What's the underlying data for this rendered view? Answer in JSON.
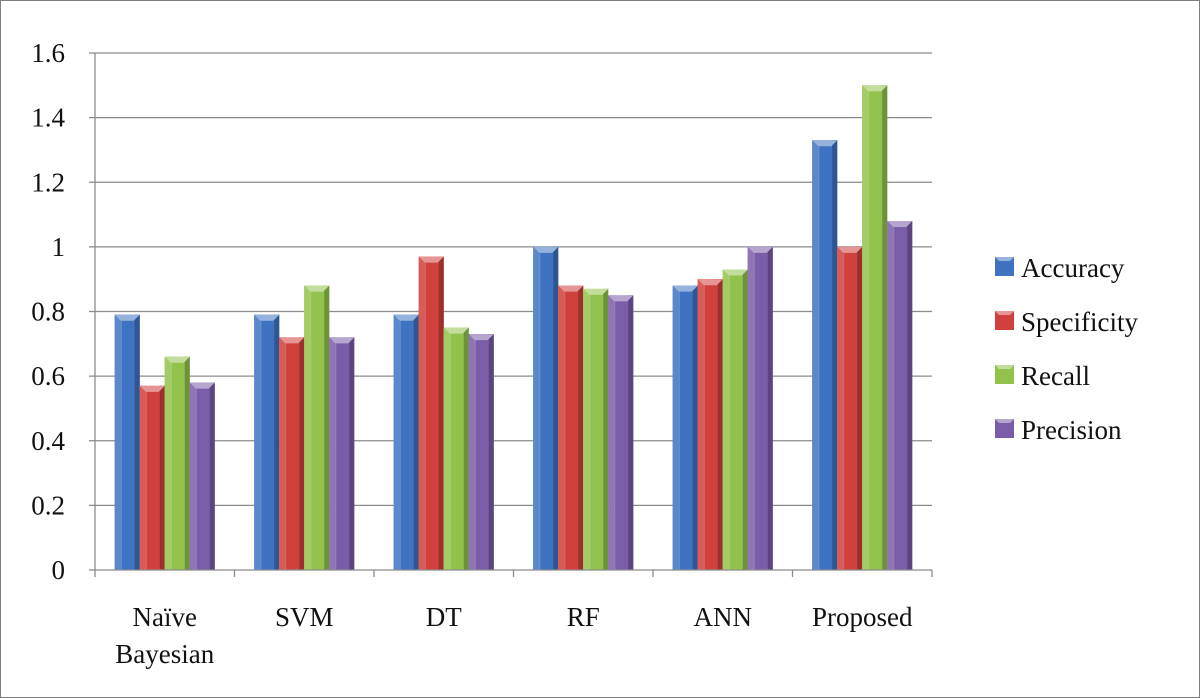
{
  "chart_data": {
    "type": "bar",
    "title": "",
    "xlabel": "",
    "ylabel": "",
    "ylim": [
      0,
      1.6
    ],
    "yticks": [
      "0",
      "0.2",
      "0.4",
      "0.6",
      "0.8",
      "1",
      "1.2",
      "1.4",
      "1.6"
    ],
    "grid": true,
    "legend_position": "right",
    "categories": [
      [
        "Naïve",
        "Bayesian"
      ],
      [
        "SVM"
      ],
      [
        "DT"
      ],
      [
        "RF"
      ],
      [
        "ANN"
      ],
      [
        "Proposed"
      ]
    ],
    "series": [
      {
        "name": "Accuracy",
        "color": "#3f73c1",
        "values": [
          0.79,
          0.79,
          0.79,
          1.0,
          0.88,
          1.33
        ]
      },
      {
        "name": "Specificity",
        "color": "#d0403c",
        "values": [
          0.57,
          0.72,
          0.97,
          0.88,
          0.9,
          1.0
        ]
      },
      {
        "name": "Recall",
        "color": "#92c24c",
        "values": [
          0.66,
          0.88,
          0.75,
          0.87,
          0.93,
          1.5
        ]
      },
      {
        "name": "Precision",
        "color": "#7b5ca8",
        "values": [
          0.58,
          0.72,
          0.73,
          0.85,
          1.0,
          1.08
        ]
      }
    ]
  }
}
